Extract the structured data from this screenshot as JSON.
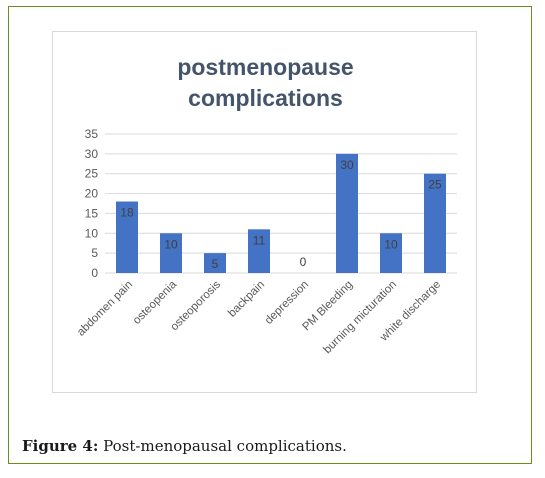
{
  "chart_data": {
    "type": "bar",
    "title_line1": "postmenopause",
    "title_line2": "complications",
    "categories": [
      "abdomen pain",
      "osteopenia",
      "osteoporosis",
      "backpain",
      "depression",
      "PM Bleeding",
      "burning micturation",
      "white discharge"
    ],
    "values": [
      18,
      10,
      5,
      11,
      0,
      30,
      10,
      25
    ],
    "yticks": [
      0,
      5,
      10,
      15,
      20,
      25,
      30,
      35
    ],
    "ylim": [
      0,
      35
    ],
    "grid": true,
    "bar_color": "#4472c4"
  },
  "caption": {
    "label": "Figure 4:",
    "text": " Post-menopausal complications."
  }
}
